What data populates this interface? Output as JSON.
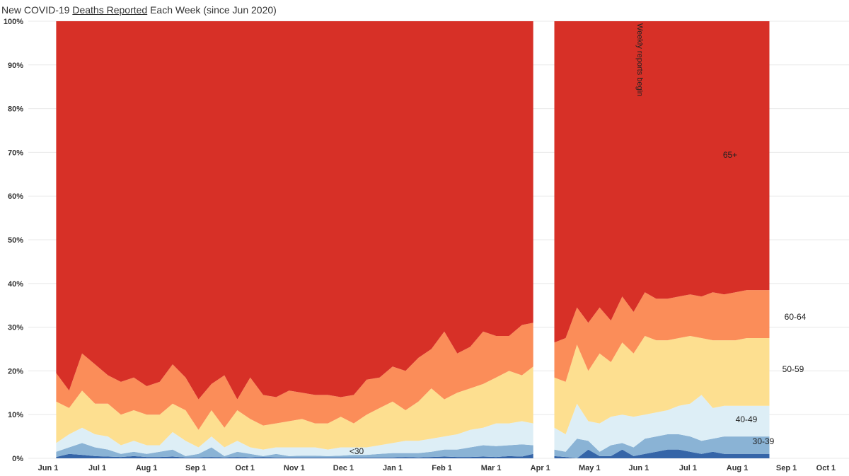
{
  "title": {
    "prefix": "New COVID-19 ",
    "underlined": "Deaths Reported",
    "suffix": " Each Week (since Jun 2020)"
  },
  "annotation": "Weekly reports begin",
  "colors": {
    "lt30": "#3565a8",
    "30_39": "#8ab3d5",
    "40_49": "#ddeef6",
    "50_59": "#fddf90",
    "60_64": "#fb8d59",
    "65plus": "#d73027",
    "grid": "#e8e8e8"
  },
  "chart_data": {
    "type": "area",
    "stacked": true,
    "normalized": "percent",
    "title": "New COVID-19 Deaths Reported Each Week (since Jun 2020)",
    "xlabel": "",
    "ylabel": "",
    "ylim": [
      0,
      100
    ],
    "y_ticks": [
      "0%",
      "10%",
      "20%",
      "30%",
      "40%",
      "50%",
      "60%",
      "70%",
      "80%",
      "90%",
      "100%"
    ],
    "x_ticks": [
      "Jun 1",
      "Jul 1",
      "Aug 1",
      "Sep 1",
      "Oct 1",
      "Nov 1",
      "Dec 1",
      "Jan 1",
      "Feb 1",
      "Mar 1",
      "Apr 1",
      "May 1",
      "Jun 1",
      "Jul 1",
      "Aug 1",
      "Sep 1",
      "Oct 1"
    ],
    "x_range_days": [
      0,
      487
    ],
    "gap_days": [
      300,
      313
    ],
    "annotation": "Weekly reports begin",
    "series_labels": [
      {
        "series": "<30",
        "text": "<30"
      },
      {
        "series": "30-39",
        "text": "30-39"
      },
      {
        "series": "40-49",
        "text": "40-49"
      },
      {
        "series": "50-59",
        "text": "50-59"
      },
      {
        "series": "60-64",
        "text": "60-64"
      },
      {
        "series": "65+",
        "text": "65+"
      }
    ],
    "segments": [
      {
        "x_days": [
          5,
          13,
          21,
          29,
          37,
          45,
          53,
          61,
          69,
          77,
          85,
          93,
          101,
          109,
          117,
          125,
          133,
          141,
          149,
          157,
          165,
          173,
          181,
          189,
          197,
          205,
          213,
          221,
          229,
          237,
          245,
          253,
          261,
          269,
          277,
          285,
          293,
          300
        ],
        "cumulative": [
          {
            "name": "<30",
            "values": [
              0.3,
              1.0,
              0.8,
              0.5,
              0.4,
              0.3,
              0.5,
              0.3,
              0.3,
              0.4,
              0.2,
              0.2,
              0.3,
              0.2,
              0.3,
              0.2,
              0.3,
              0.2,
              0.2,
              0.2,
              0.2,
              0.2,
              0.2,
              0.2,
              0.2,
              0.2,
              0.2,
              0.3,
              0.2,
              0.3,
              0.4,
              0.3,
              0.3,
              0.4,
              0.3,
              0.5,
              0.4,
              1.0
            ]
          },
          {
            "name": "30-39",
            "values": [
              1.5,
              2.5,
              3.5,
              2.5,
              2.0,
              1.0,
              1.5,
              1.0,
              1.5,
              2.0,
              0.5,
              1.0,
              2.5,
              0.5,
              1.5,
              1.0,
              0.5,
              1.0,
              0.5,
              0.6,
              0.6,
              0.5,
              0.6,
              0.8,
              0.8,
              1.0,
              1.2,
              1.2,
              1.2,
              1.5,
              2.0,
              2.0,
              2.5,
              3.0,
              2.8,
              3.0,
              3.2,
              3.0
            ]
          },
          {
            "name": "40-49",
            "values": [
              3.5,
              5.5,
              7.0,
              5.5,
              5.0,
              3.0,
              4.0,
              3.0,
              3.0,
              6.0,
              4.0,
              2.5,
              5.0,
              2.5,
              4.0,
              2.5,
              2.0,
              2.5,
              2.5,
              2.5,
              2.5,
              2.0,
              2.5,
              2.5,
              2.5,
              3.0,
              3.5,
              4.0,
              4.0,
              4.5,
              5.0,
              5.5,
              6.5,
              7.0,
              8.0,
              8.0,
              8.5,
              8.0
            ]
          },
          {
            "name": "50-59",
            "values": [
              13.0,
              11.5,
              15.5,
              12.5,
              12.5,
              10.0,
              11.0,
              10.0,
              10.0,
              12.5,
              11.0,
              6.5,
              11.0,
              7.0,
              11.0,
              9.0,
              7.5,
              8.0,
              8.5,
              9.0,
              8.0,
              8.0,
              9.5,
              8.0,
              10.0,
              11.5,
              13.0,
              11.0,
              13.0,
              16.0,
              13.5,
              15.0,
              16.0,
              17.0,
              18.5,
              20.0,
              19.0,
              21.0
            ]
          },
          {
            "name": "60-64",
            "values": [
              19.5,
              15.5,
              24.0,
              21.5,
              19.0,
              17.5,
              18.5,
              16.5,
              17.5,
              21.5,
              18.5,
              13.5,
              17.0,
              19.0,
              13.5,
              18.5,
              14.5,
              14.0,
              15.5,
              15.0,
              14.5,
              14.5,
              14.0,
              14.5,
              18.0,
              18.5,
              21.0,
              20.0,
              23.0,
              25.0,
              29.0,
              24.0,
              25.5,
              29.0,
              28.0,
              28.0,
              30.5,
              31.0
            ]
          },
          {
            "name": "65+",
            "values": [
              100,
              100,
              100,
              100,
              100,
              100,
              100,
              100,
              100,
              100,
              100,
              100,
              100,
              100,
              100,
              100,
              100,
              100,
              100,
              100,
              100,
              100,
              100,
              100,
              100,
              100,
              100,
              100,
              100,
              100,
              100,
              100,
              100,
              100,
              100,
              100,
              100,
              100
            ]
          }
        ]
      },
      {
        "x_days": [
          313,
          320,
          327,
          334,
          341,
          348,
          355,
          362,
          369,
          376,
          383,
          390,
          397,
          404,
          411,
          418,
          425,
          432,
          439,
          446
        ],
        "cumulative": [
          {
            "name": "<30",
            "values": [
              0.5,
              0.3,
              0.0,
              2.0,
              0.5,
              0.5,
              2.0,
              0.5,
              1.0,
              1.5,
              2.0,
              2.0,
              1.5,
              1.0,
              1.5,
              1.0,
              1.0,
              1.0,
              1.0,
              1.0
            ]
          },
          {
            "name": "30-39",
            "values": [
              2.0,
              1.5,
              4.5,
              4.0,
              1.5,
              3.0,
              3.5,
              2.5,
              4.5,
              5.0,
              5.5,
              5.5,
              5.0,
              4.0,
              4.5,
              5.0,
              5.0,
              5.0,
              5.0,
              5.0
            ]
          },
          {
            "name": "40-49",
            "values": [
              7.0,
              5.5,
              12.5,
              8.5,
              8.0,
              9.5,
              10.0,
              9.5,
              10.0,
              10.5,
              11.0,
              12.0,
              12.5,
              14.5,
              11.5,
              12.0,
              12.0,
              12.0,
              12.0,
              12.0
            ]
          },
          {
            "name": "50-59",
            "values": [
              18.5,
              17.5,
              26.0,
              20.0,
              24.0,
              22.0,
              26.5,
              24.0,
              28.0,
              27.0,
              27.0,
              27.5,
              28.0,
              27.5,
              27.0,
              27.0,
              27.0,
              27.5,
              27.5,
              27.5
            ]
          },
          {
            "name": "60-64",
            "values": [
              26.5,
              27.5,
              34.5,
              31.0,
              34.5,
              31.5,
              37.0,
              33.5,
              38.0,
              36.5,
              36.5,
              37.0,
              37.5,
              37.0,
              38.0,
              37.5,
              38.0,
              38.5,
              38.5,
              38.5
            ]
          },
          {
            "name": "65+",
            "values": [
              100,
              100,
              100,
              100,
              100,
              100,
              100,
              100,
              100,
              100,
              100,
              100,
              100,
              100,
              100,
              100,
              100,
              100,
              100,
              100
            ]
          }
        ]
      }
    ]
  }
}
